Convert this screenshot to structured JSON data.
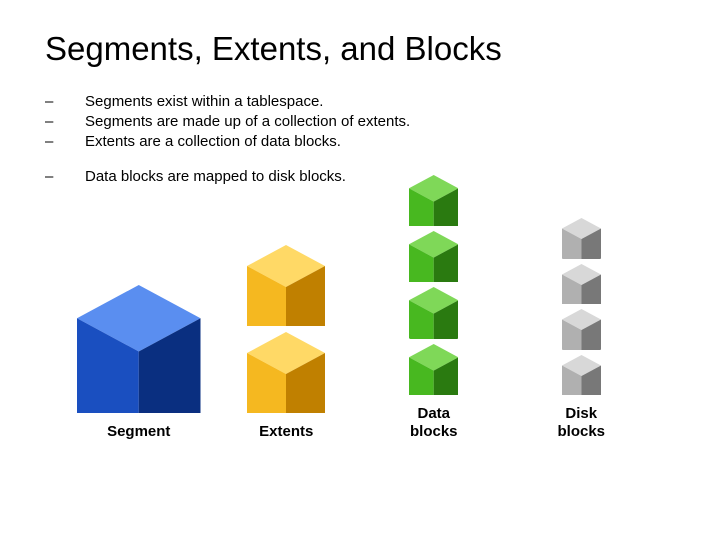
{
  "title": "Segments, Extents, and Blocks",
  "bullets": {
    "b1": "Segments exist within a tablespace.",
    "b2": "Segments are made up of a collection of extents.",
    "b3": "Extents are a collection of data blocks.",
    "b4": "Data blocks are mapped to disk blocks."
  },
  "dash": "–",
  "columns": {
    "segment": {
      "label": "Segment",
      "cube": {
        "size": 95,
        "top": "#5a8ef0",
        "left": "#1a4fc0",
        "right": "#0a2f80",
        "count": 1,
        "gap": 0
      }
    },
    "extents": {
      "label": "Extents",
      "cube": {
        "size": 60,
        "top": "#ffd966",
        "left": "#f5b820",
        "right": "#c08000",
        "count": 2,
        "gap": 6
      }
    },
    "datablocks": {
      "label": "Data\nblocks",
      "cube": {
        "size": 38,
        "top": "#7fd858",
        "left": "#48b820",
        "right": "#2a7a10",
        "count": 4,
        "gap": 5
      }
    },
    "diskblocks": {
      "label": "Disk\nblocks",
      "cube": {
        "size": 30,
        "top": "#d8d8d8",
        "left": "#b0b0b0",
        "right": "#787878",
        "count": 4,
        "gap": 5
      }
    }
  }
}
